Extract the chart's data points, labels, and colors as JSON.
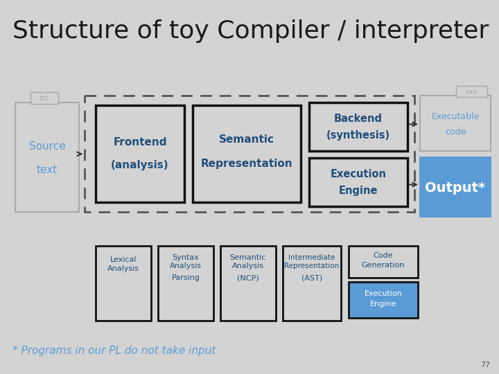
{
  "title": "Structure of toy Compiler / interpreter",
  "bg_color": "#d3d3d3",
  "title_color": "#1a1a1a",
  "title_fontsize": 26,
  "slide_number": "77",
  "footnote": "* Programs in our PL do not take input",
  "footnote_color": "#5b9bd5",
  "source_border": "#aaaaaa",
  "txt_border": "#aaaaaa",
  "dashed_color": "#555555",
  "inner_border": "#111111",
  "inner_border_thin": "#aaaaaa",
  "output_bg": "#5b9bd5",
  "exec_engine_bottom_bg": "#5b9bd5",
  "frontend_text": "#1f4e79",
  "semantic_text": "#1f4e79",
  "backend_text": "#1f4e79",
  "execution_text": "#1f4e79",
  "source_text": "#5b9bd5",
  "exec_code_text": "#5b9bd5",
  "output_text": "#ffffff",
  "bottom_text": "#1f4e79",
  "exec_bottom_text": "#ffffff",
  "gray_text": "#aaaaaa"
}
